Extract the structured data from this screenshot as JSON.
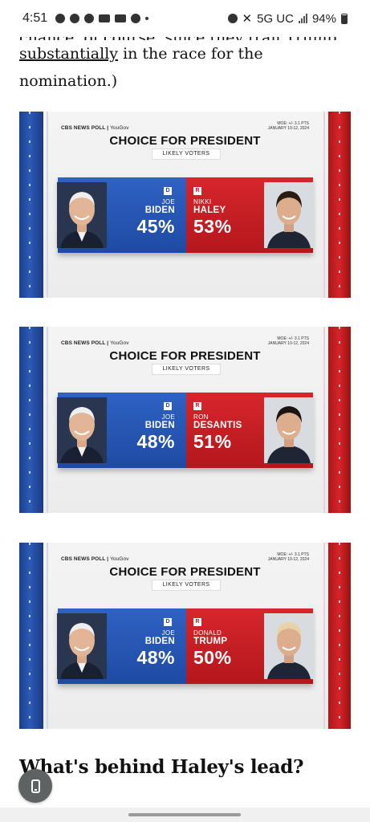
{
  "status_bar": {
    "time": "4:51",
    "network": "5G UC",
    "battery": "94%"
  },
  "article": {
    "cut_line": "chance, of course, since they trail Trump",
    "link_text": "substantially",
    "line1_rest": " in the race for the",
    "line2": "nomination.)",
    "heading": "What's behind Haley's lead?"
  },
  "polls": [
    {
      "brand": "CBS NEWS POLL",
      "brand_partner": "YouGov",
      "moe": "MOE: +/- 3.1 PTS",
      "dates": "JANUARY 10-12, 2024",
      "title": "CHOICE FOR PRESIDENT",
      "subtitle": "LIKELY VOTERS",
      "dem": {
        "badge": "D",
        "first": "JOE",
        "last": "BIDEN",
        "pct": "45%"
      },
      "rep": {
        "badge": "R",
        "first": "NIKKI",
        "last": "HALEY",
        "pct": "53%"
      }
    },
    {
      "brand": "CBS NEWS POLL",
      "brand_partner": "YouGov",
      "moe": "MOE: +/- 3.1 PTS",
      "dates": "JANUARY 10-12, 2024",
      "title": "CHOICE FOR PRESIDENT",
      "subtitle": "LIKELY VOTERS",
      "dem": {
        "badge": "D",
        "first": "JOE",
        "last": "BIDEN",
        "pct": "48%"
      },
      "rep": {
        "badge": "R",
        "first": "RON",
        "last": "DESANTIS",
        "pct": "51%"
      }
    },
    {
      "brand": "CBS NEWS POLL",
      "brand_partner": "YouGov",
      "moe": "MOE: +/- 3.1 PTS",
      "dates": "JANUARY 10-12, 2024",
      "title": "CHOICE FOR PRESIDENT",
      "subtitle": "LIKELY VOTERS",
      "dem": {
        "badge": "D",
        "first": "JOE",
        "last": "BIDEN",
        "pct": "48%"
      },
      "rep": {
        "badge": "R",
        "first": "DONALD",
        "last": "TRUMP",
        "pct": "50%"
      }
    }
  ],
  "colors": {
    "dem_blue": "#1e4aa3",
    "rep_red": "#c01d22"
  }
}
